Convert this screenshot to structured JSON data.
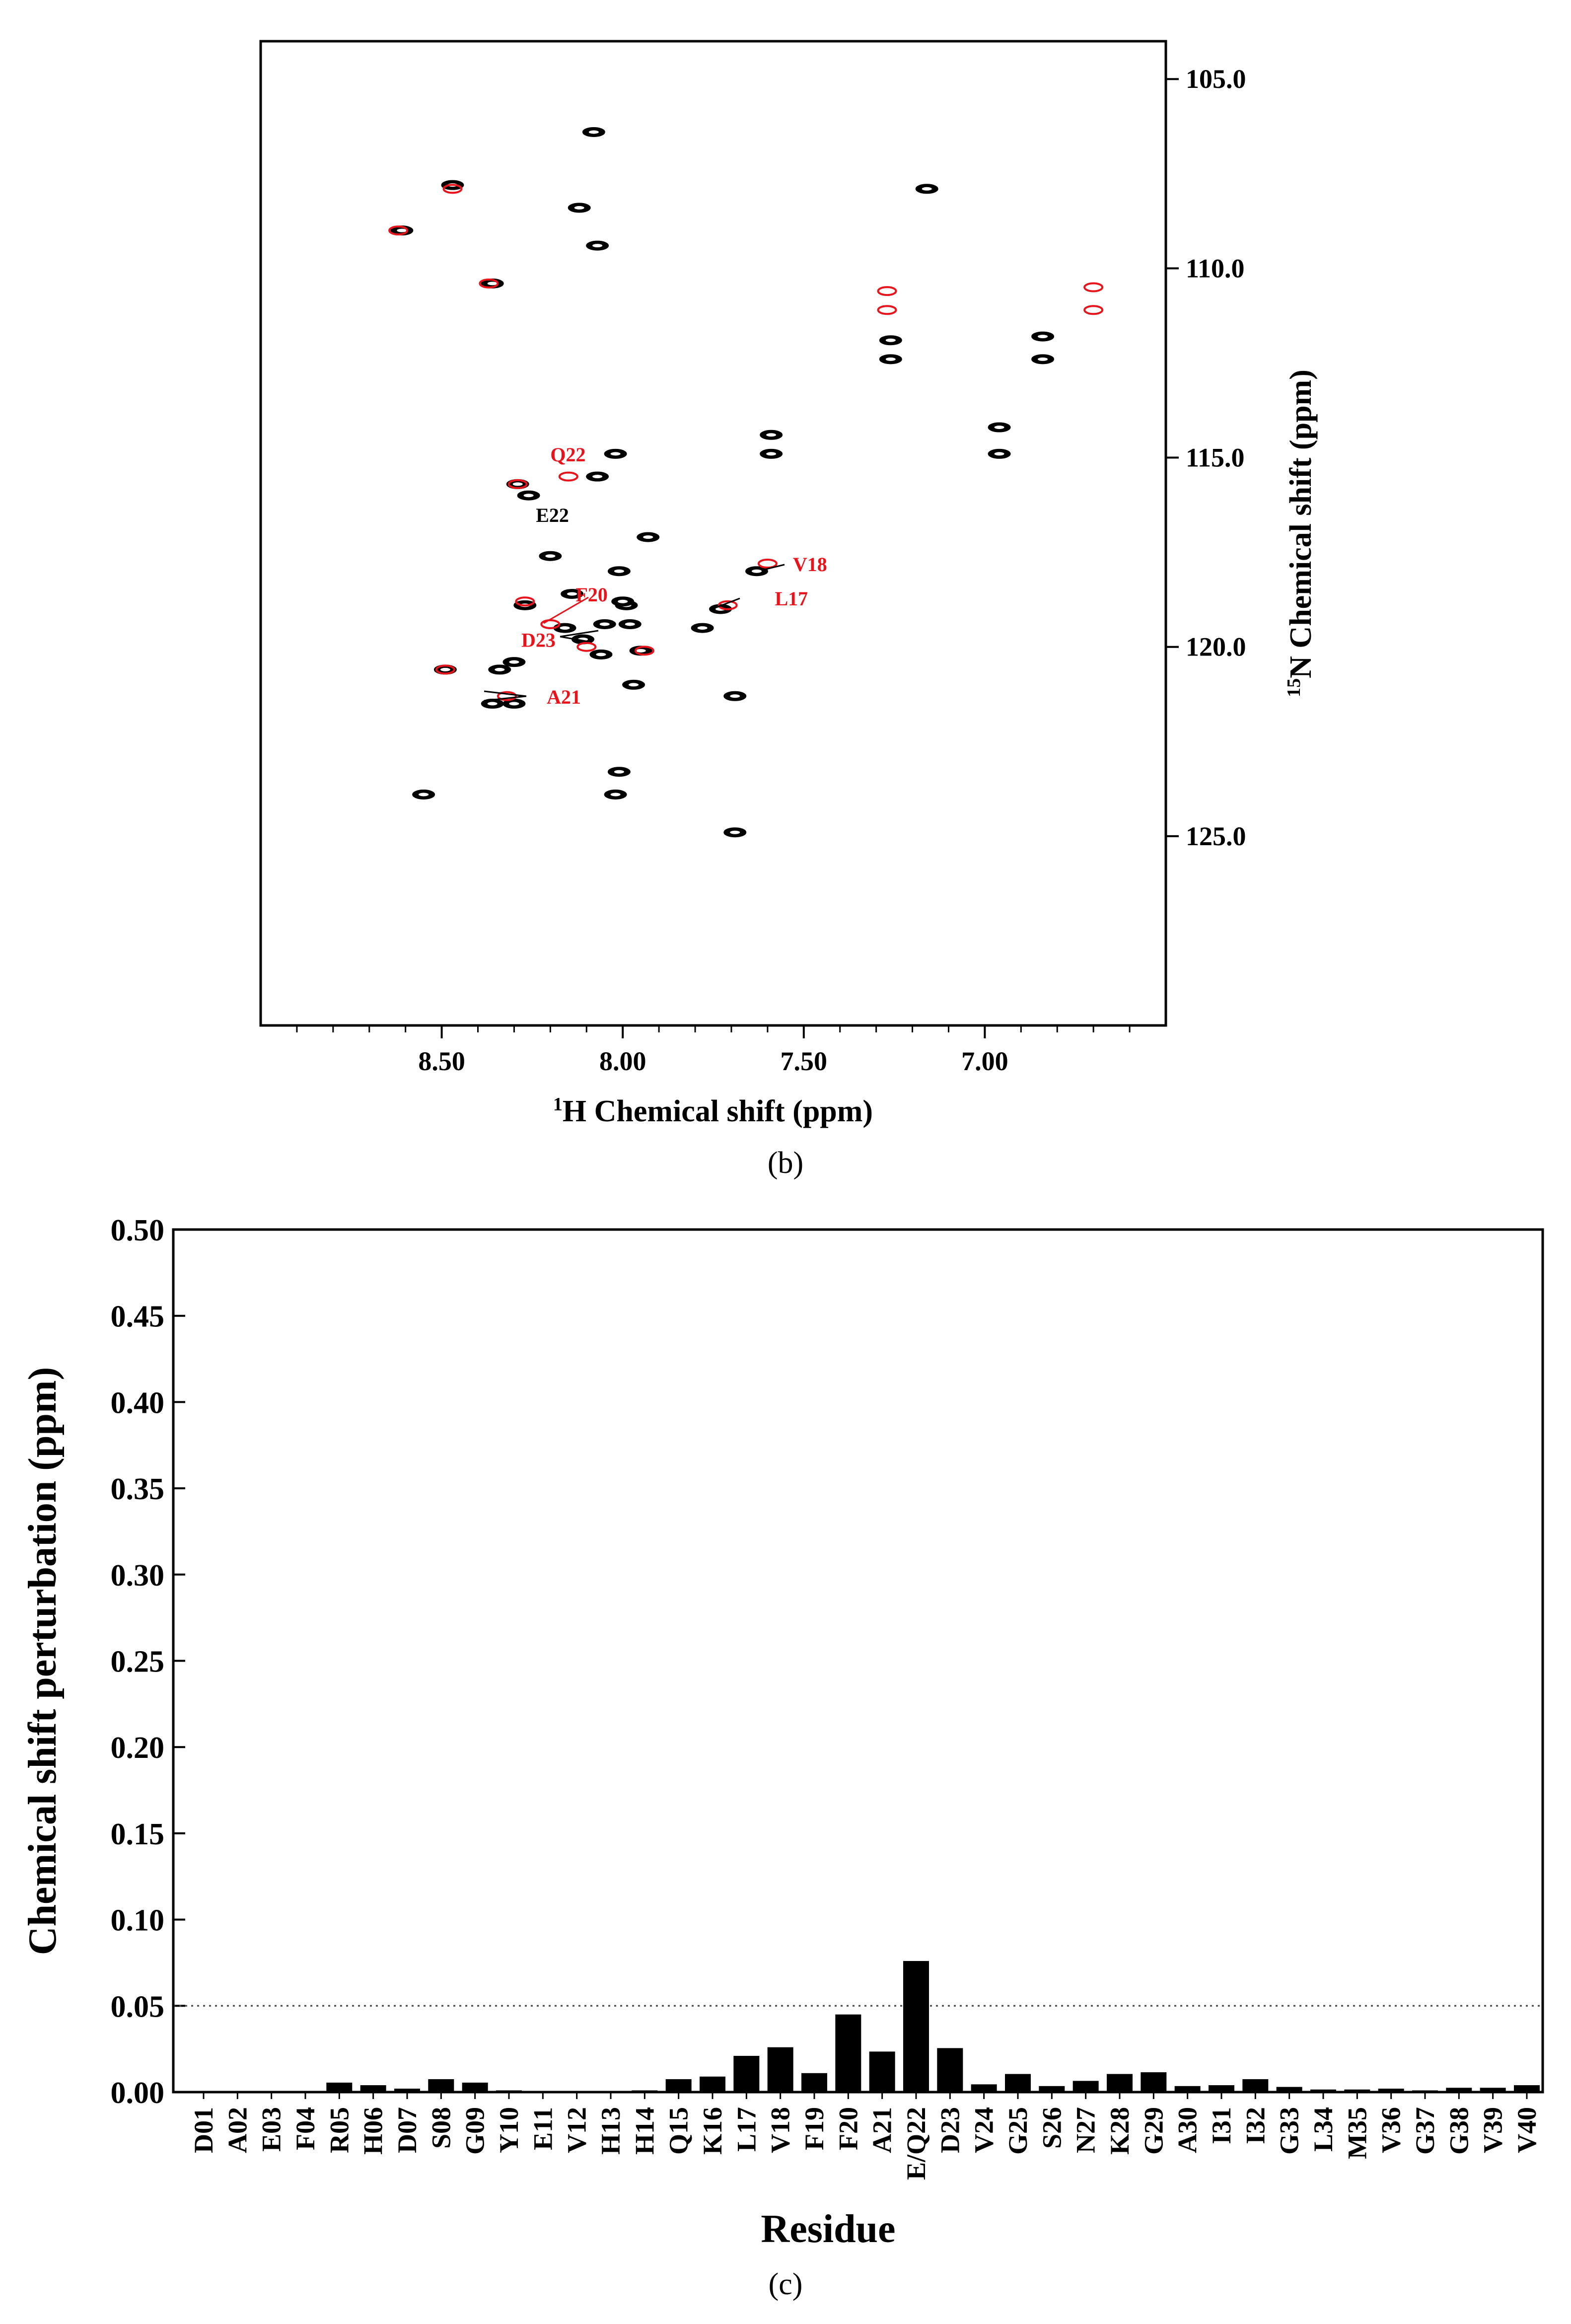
{
  "panel_b_label": "(b)",
  "panel_c_label": "(c)",
  "chart_data": [
    {
      "type": "scatter",
      "title": "",
      "xlabel_sup": "1",
      "xlabel": "H Chemical shift (ppm)",
      "ylabel_sup": "15",
      "ylabel": "N Chemical shift (ppm)",
      "xlim": [
        9.0,
        6.5
      ],
      "ylim": [
        130.0,
        104.0
      ],
      "x_ticks": [
        8.5,
        8.0,
        7.5,
        7.0
      ],
      "x_tick_labels": [
        "8.50",
        "8.00",
        "7.50",
        "7.00"
      ],
      "y_ticks": [
        105,
        110,
        115,
        120,
        125
      ],
      "y_tick_labels": [
        "105.0",
        "110.0",
        "115.0",
        "120.0",
        "125.0"
      ],
      "colors": {
        "free": "#000000",
        "mutant": "#e8141c"
      },
      "peaks_black": [
        [
          8.08,
          106.4
        ],
        [
          8.47,
          107.8
        ],
        [
          8.61,
          109.0
        ],
        [
          8.12,
          108.4
        ],
        [
          8.07,
          109.4
        ],
        [
          8.36,
          110.4
        ],
        [
          7.26,
          111.9
        ],
        [
          7.26,
          112.4
        ],
        [
          7.16,
          107.9
        ],
        [
          6.84,
          111.8
        ],
        [
          6.84,
          112.4
        ],
        [
          6.96,
          114.2
        ],
        [
          6.96,
          114.9
        ],
        [
          7.59,
          114.4
        ],
        [
          7.59,
          114.9
        ],
        [
          8.02,
          114.9
        ],
        [
          8.07,
          115.5
        ],
        [
          8.29,
          115.7
        ],
        [
          8.26,
          116.0
        ],
        [
          7.93,
          117.1
        ],
        [
          8.2,
          117.6
        ],
        [
          8.01,
          118.0
        ],
        [
          8.14,
          118.6
        ],
        [
          8.27,
          118.9
        ],
        [
          7.99,
          118.9
        ],
        [
          8.05,
          119.4
        ],
        [
          8.16,
          119.5
        ],
        [
          7.98,
          119.4
        ],
        [
          7.78,
          119.5
        ],
        [
          8.11,
          119.8
        ],
        [
          8.06,
          120.2
        ],
        [
          7.95,
          120.1
        ],
        [
          8.3,
          120.4
        ],
        [
          8.49,
          120.6
        ],
        [
          8.34,
          120.6
        ],
        [
          7.97,
          121.0
        ],
        [
          7.69,
          121.3
        ],
        [
          8.36,
          121.5
        ],
        [
          8.3,
          121.5
        ],
        [
          8.55,
          123.9
        ],
        [
          8.01,
          123.3
        ],
        [
          8.02,
          123.9
        ],
        [
          7.69,
          124.9
        ],
        [
          7.73,
          119.0
        ],
        [
          7.63,
          118.0
        ],
        [
          8.0,
          118.8
        ]
      ],
      "peaks_red": [
        [
          8.47,
          107.9
        ],
        [
          8.62,
          109.0
        ],
        [
          8.37,
          110.4
        ],
        [
          7.27,
          110.6
        ],
        [
          7.27,
          111.1
        ],
        [
          6.7,
          110.5
        ],
        [
          6.7,
          111.1
        ],
        [
          8.15,
          115.5
        ],
        [
          8.29,
          115.7
        ],
        [
          8.27,
          118.8
        ],
        [
          8.2,
          119.4
        ],
        [
          8.1,
          120.0
        ],
        [
          7.94,
          120.1
        ],
        [
          8.32,
          121.3
        ],
        [
          7.71,
          118.9
        ],
        [
          7.6,
          117.8
        ],
        [
          8.49,
          120.6
        ]
      ],
      "annotations": [
        {
          "text": "Q22",
          "color": "red",
          "x": 8.2,
          "y": 115.1
        },
        {
          "text": "E22",
          "color": "black",
          "x": 8.24,
          "y": 116.7
        },
        {
          "text": "V18",
          "color": "red",
          "x": 7.53,
          "y": 118.0
        },
        {
          "text": "L17",
          "color": "red",
          "x": 7.58,
          "y": 118.9
        },
        {
          "text": "F20",
          "color": "red",
          "x": 8.13,
          "y": 118.8
        },
        {
          "text": "D23",
          "color": "red",
          "x": 8.28,
          "y": 120.0
        },
        {
          "text": "A21",
          "color": "red",
          "x": 8.21,
          "y": 121.5
        }
      ]
    },
    {
      "type": "bar",
      "title": "",
      "xlabel": "Residue",
      "ylabel": "Chemical shift perturbation (ppm)",
      "ylim": [
        0.0,
        0.5
      ],
      "y_ticks": [
        0.0,
        0.05,
        0.1,
        0.15,
        0.2,
        0.25,
        0.3,
        0.35,
        0.4,
        0.45,
        0.5
      ],
      "y_tick_labels": [
        "0.00",
        "0.05",
        "0.10",
        "0.15",
        "0.20",
        "0.25",
        "0.30",
        "0.35",
        "0.40",
        "0.45",
        "0.50"
      ],
      "threshold": 0.05,
      "categories": [
        "D01",
        "A02",
        "E03",
        "F04",
        "R05",
        "H06",
        "D07",
        "S08",
        "G09",
        "Y10",
        "E11",
        "V12",
        "H13",
        "H14",
        "Q15",
        "K16",
        "L17",
        "V18",
        "F19",
        "F20",
        "A21",
        "E/Q22",
        "D23",
        "V24",
        "G25",
        "S26",
        "N27",
        "K28",
        "G29",
        "A30",
        "I31",
        "I32",
        "G33",
        "L34",
        "M35",
        "V36",
        "G37",
        "G38",
        "V39",
        "V40"
      ],
      "values": [
        0.0,
        0.0,
        0.0005,
        0.0,
        0.0055,
        0.004,
        0.002,
        0.0075,
        0.0055,
        0.001,
        0.0,
        0.0005,
        0.0,
        0.001,
        0.0075,
        0.009,
        0.021,
        0.026,
        0.011,
        0.045,
        0.0235,
        0.076,
        0.0255,
        0.0045,
        0.0105,
        0.0035,
        0.0065,
        0.0105,
        0.0115,
        0.0035,
        0.004,
        0.0075,
        0.003,
        0.0015,
        0.0015,
        0.002,
        0.001,
        0.0025,
        0.0025,
        0.004
      ]
    }
  ]
}
